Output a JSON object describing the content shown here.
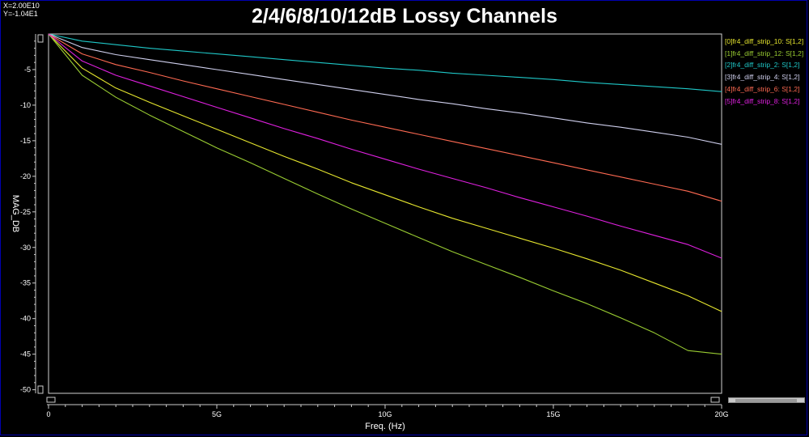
{
  "readout": {
    "x": "X=2.00E10",
    "y": "Y=-1.04E1"
  },
  "chart_data": {
    "type": "line",
    "title": "2/4/6/8/10/12dB Lossy Channels",
    "xlabel": "Freq. (Hz)",
    "ylabel": "MAG_DB",
    "xlim": [
      0,
      20000000000
    ],
    "ylim": [
      -50.5,
      0
    ],
    "x_ticks": [
      {
        "value": 0,
        "label": "0"
      },
      {
        "value": 5000000000,
        "label": "5G"
      },
      {
        "value": 10000000000,
        "label": "10G"
      },
      {
        "value": 15000000000,
        "label": "15G"
      },
      {
        "value": 20000000000,
        "label": "20G"
      }
    ],
    "y_ticks": [
      {
        "value": -5,
        "label": "-5"
      },
      {
        "value": -10,
        "label": "-10"
      },
      {
        "value": -15,
        "label": "-15"
      },
      {
        "value": -20,
        "label": "-20"
      },
      {
        "value": -25,
        "label": "-25"
      },
      {
        "value": -30,
        "label": "-30"
      },
      {
        "value": -35,
        "label": "-35"
      },
      {
        "value": -40,
        "label": "-40"
      },
      {
        "value": -45,
        "label": "-45"
      },
      {
        "value": -50,
        "label": "-50"
      }
    ],
    "grid": false,
    "legend_position": "right",
    "x": [
      0,
      1000000000,
      2000000000,
      3000000000,
      4000000000,
      5000000000,
      6000000000,
      7000000000,
      8000000000,
      9000000000,
      10000000000,
      11000000000,
      12000000000,
      13000000000,
      14000000000,
      15000000000,
      16000000000,
      17000000000,
      18000000000,
      19000000000,
      20000000000
    ],
    "series": [
      {
        "name": "[0]fr4_diff_strip_10: S[1,2]",
        "color": "#e6e62e",
        "values": [
          0,
          -4.8,
          -7.6,
          -9.6,
          -11.5,
          -13.4,
          -15.3,
          -17.2,
          -19.0,
          -20.9,
          -22.6,
          -24.3,
          -25.9,
          -27.3,
          -28.7,
          -30.1,
          -31.6,
          -33.2,
          -35.0,
          -36.8,
          -39.0
        ]
      },
      {
        "name": "[1]fr4_diff_strip_12: S[1,2]",
        "color": "#9acd32",
        "values": [
          0,
          -5.8,
          -8.9,
          -11.4,
          -13.7,
          -16.0,
          -18.1,
          -20.3,
          -22.5,
          -24.6,
          -26.6,
          -28.6,
          -30.6,
          -32.4,
          -34.2,
          -36.1,
          -37.9,
          -39.9,
          -42.0,
          -44.5,
          -45.0
        ]
      },
      {
        "name": "[2]fr4_diff_strip_2: S[1,2]",
        "color": "#1fc8c8",
        "values": [
          0,
          -1.0,
          -1.5,
          -2.0,
          -2.4,
          -2.8,
          -3.2,
          -3.6,
          -4.0,
          -4.4,
          -4.8,
          -5.1,
          -5.5,
          -5.8,
          -6.1,
          -6.4,
          -6.8,
          -7.1,
          -7.4,
          -7.7,
          -8.1
        ]
      },
      {
        "name": "[3]fr4_diff_strip_4: S[1,2]",
        "color": "#d0d0ee",
        "values": [
          0,
          -1.9,
          -2.9,
          -3.6,
          -4.3,
          -5.0,
          -5.7,
          -6.4,
          -7.1,
          -7.8,
          -8.5,
          -9.2,
          -9.8,
          -10.5,
          -11.1,
          -11.8,
          -12.5,
          -13.1,
          -13.8,
          -14.5,
          -15.5
        ]
      },
      {
        "name": "[4]fr4_diff_strip_6: S[1,2]",
        "color": "#ff6a52",
        "values": [
          0,
          -2.8,
          -4.3,
          -5.4,
          -6.6,
          -7.7,
          -8.8,
          -9.9,
          -11.0,
          -12.1,
          -13.1,
          -14.1,
          -15.1,
          -16.1,
          -17.1,
          -18.1,
          -19.1,
          -20.1,
          -21.1,
          -22.1,
          -23.5
        ]
      },
      {
        "name": "[5]fr4_diff_strip_8: S[1,2]",
        "color": "#e020e0",
        "values": [
          0,
          -3.8,
          -5.8,
          -7.3,
          -8.8,
          -10.3,
          -11.8,
          -13.3,
          -14.7,
          -16.2,
          -17.6,
          -19.0,
          -20.3,
          -21.6,
          -23.0,
          -24.3,
          -25.6,
          -27.0,
          -28.3,
          -29.6,
          -31.5
        ]
      }
    ]
  }
}
